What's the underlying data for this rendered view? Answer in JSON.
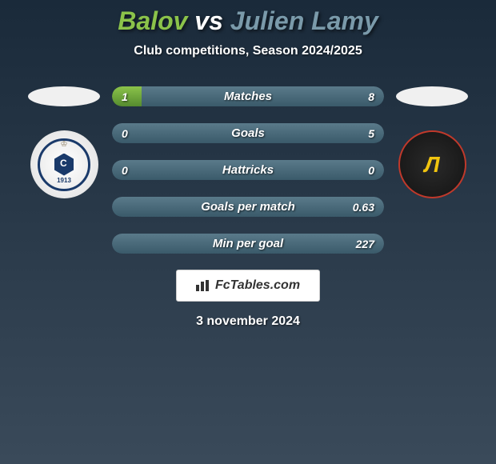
{
  "title": {
    "player1": "Balov",
    "vs": "vs",
    "player2": "Julien Lamy",
    "player1_color": "#8bc34a",
    "player2_color": "#7a9aaa",
    "vs_color": "#ffffff",
    "fontsize": 32
  },
  "subtitle": "Club competitions, Season 2024/2025",
  "stats": [
    {
      "label": "Matches",
      "left_value": "1",
      "right_value": "8",
      "left_pct": 11,
      "right_pct": 89
    },
    {
      "label": "Goals",
      "left_value": "0",
      "right_value": "5",
      "left_pct": 0,
      "right_pct": 100
    },
    {
      "label": "Hattricks",
      "left_value": "0",
      "right_value": "0",
      "left_pct": 0,
      "right_pct": 100
    },
    {
      "label": "Goals per match",
      "left_value": "",
      "right_value": "0.63",
      "left_pct": 0,
      "right_pct": 100
    },
    {
      "label": "Min per goal",
      "left_value": "",
      "right_value": "227",
      "left_pct": 0,
      "right_pct": 100
    }
  ],
  "colors": {
    "left_bar": "#8bc34a",
    "right_bar": "#5a7a8a",
    "background_top": "#1a2a3a",
    "background_bottom": "#3a4a5a",
    "text": "#ffffff"
  },
  "watermark": "FcTables.com",
  "date": "3 november 2024",
  "clubs": {
    "left_year": "1913",
    "right_letter": "Л"
  }
}
